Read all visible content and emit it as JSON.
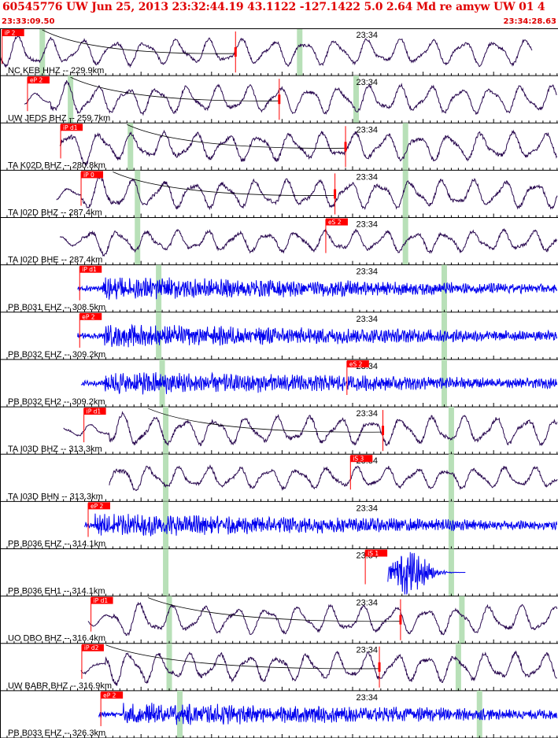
{
  "header": {
    "title": "60545776 UW Jun 25, 2013 23:32:44.19   43.1122 -127.1422  5.0 2.64 Md re amyw UW 01   4",
    "time_start": "23:33:09.50",
    "time_end": "23:34:28.63"
  },
  "colors": {
    "text_red": "#e00000",
    "pick_red": "#ff0000",
    "broadband_trace": "#2a0a50",
    "shortperiod_trace": "#0000ee",
    "marker_green": "#b8e0b8",
    "grid": "#000000"
  },
  "chart_data": {
    "type": "seismogram-stack",
    "time_axis": {
      "start": "23:33:09.50",
      "end": "23:34:28.63",
      "minute_label": "23:34",
      "minute_time_s": 50.5
    },
    "traces": [
      {
        "label": "NC KEB HHZ -- 229.9km",
        "color": "broadband",
        "kind": "bb",
        "start": 0.0,
        "end": 75.5,
        "amp": 0.8,
        "noise": 0.1,
        "period": 4.5,
        "onset": 0,
        "picks": [
          {
            "label": "iP 2",
            "t": 0.3,
            "flag": true
          },
          {
            "label": "",
            "t": 33.4,
            "flag": false
          }
        ],
        "green": [
          6.0,
          42.5
        ],
        "curve": {
          "from": 6.0,
          "to": 33.4
        }
      },
      {
        "label": "UW JEDS BHZ -- 259.7km",
        "color": "broadband",
        "kind": "bb",
        "start": 3.5,
        "end": 80.0,
        "amp": 0.85,
        "noise": 0.1,
        "period": 4.3,
        "onset": 7.2,
        "picks": [
          {
            "label": "eP 2",
            "t": 3.9,
            "flag": true
          },
          {
            "label": "",
            "t": 39.6,
            "flag": false
          }
        ],
        "green": [
          10.0,
          50.5
        ],
        "curve": {
          "from": 10.0,
          "to": 39.6
        }
      },
      {
        "label": "TA K02D BHZ -- 280.8km",
        "color": "broadband",
        "kind": "bb",
        "start": 8.5,
        "end": 83.0,
        "amp": 0.85,
        "noise": 0.12,
        "period": 4.5,
        "onset": 8.6,
        "picks": [
          {
            "label": "iP d1",
            "t": 8.6,
            "flag": true
          },
          {
            "label": "",
            "t": 49.0,
            "flag": false
          }
        ],
        "green": [
          18.5,
          57.5
        ],
        "curve": {
          "from": 18.0,
          "to": 49.0
        }
      },
      {
        "label": "TA I02D BHZ -- 287.4km",
        "color": "broadband",
        "kind": "bb",
        "start": 8.0,
        "end": 84.0,
        "amp": 0.85,
        "noise": 0.12,
        "period": 4.4,
        "onset": 11.5,
        "picks": [
          {
            "label": "iP 0",
            "t": 11.5,
            "flag": true
          },
          {
            "label": "",
            "t": 47.5,
            "flag": false
          }
        ],
        "green": [
          19.5,
          57.5
        ],
        "curve": {
          "from": 16.0,
          "to": 47.5
        }
      },
      {
        "label": "TA I02D BHE -- 287.4km",
        "color": "broadband",
        "kind": "bb",
        "start": 8.5,
        "end": 84.0,
        "amp": 0.65,
        "noise": 0.14,
        "period": 4.2,
        "onset": 11.5,
        "picks": [
          {
            "label": "eS 2",
            "t": 46.2,
            "flag": true
          }
        ],
        "green": [
          19.5,
          57.5
        ],
        "curve": null
      },
      {
        "label": "PB B031 EHZ -- 308.5km",
        "color": "shortperiod",
        "kind": "sp",
        "start": 11.0,
        "end": 87.5,
        "amp": 0.45,
        "noise": 0.35,
        "period": 1.0,
        "onset": 14.5,
        "picks": [
          {
            "label": "iP d1",
            "t": 11.3,
            "flag": true
          }
        ],
        "green": [
          22.5,
          63.0
        ],
        "curve": null
      },
      {
        "label": "PB B032 EHZ -- 309.2km",
        "color": "shortperiod",
        "kind": "sp",
        "start": 11.0,
        "end": 87.5,
        "amp": 0.45,
        "noise": 0.3,
        "period": 1.0,
        "onset": 14.8,
        "picks": [
          {
            "label": "eP 2",
            "t": 11.3,
            "flag": true
          }
        ],
        "green": [
          22.5,
          63.0
        ],
        "curve": null
      },
      {
        "label": "PB B032 EH2 -- 309.2km",
        "color": "shortperiod",
        "kind": "sp",
        "start": 11.5,
        "end": 87.5,
        "amp": 0.45,
        "noise": 0.3,
        "period": 1.0,
        "onset": 14.8,
        "picks": [
          {
            "label": "eS 2",
            "t": 49.2,
            "flag": true
          }
        ],
        "green": [
          23.0,
          63.0
        ],
        "curve": null
      },
      {
        "label": "TA I03D BHZ -- 313.3km",
        "color": "broadband",
        "kind": "bb",
        "start": 9.0,
        "end": 87.5,
        "amp": 0.85,
        "noise": 0.12,
        "period": 4.4,
        "onset": 15.5,
        "picks": [
          {
            "label": "iP d1",
            "t": 11.9,
            "flag": true
          },
          {
            "label": "",
            "t": 54.3,
            "flag": false
          }
        ],
        "green": [
          23.5,
          64.0
        ],
        "curve": {
          "from": 21.0,
          "to": 54.3
        }
      },
      {
        "label": "TA I03D BHN -- 313.3km",
        "color": "broadband",
        "kind": "bb",
        "start": 15.5,
        "end": 87.5,
        "amp": 0.65,
        "noise": 0.14,
        "period": 4.2,
        "onset": 15.5,
        "picks": [
          {
            "label": "iS 3",
            "t": 49.7,
            "flag": true
          }
        ],
        "green": [
          23.5,
          64.0
        ],
        "curve": null
      },
      {
        "label": "PB B036 EHZ -- 314.1km",
        "color": "shortperiod",
        "kind": "sp",
        "start": 12.0,
        "end": 88.0,
        "amp": 0.45,
        "noise": 0.3,
        "period": 1.0,
        "onset": 13.5,
        "picks": [
          {
            "label": "eP 2",
            "t": 12.5,
            "flag": true
          }
        ],
        "green": [
          23.5,
          64.0
        ],
        "curve": null
      },
      {
        "label": "PB B036 EH1 -- 314.1km",
        "color": "shortperiod",
        "kind": "sp",
        "start": 55.0,
        "end": 66.0,
        "amp": 0.9,
        "noise": 0.1,
        "period": 0.9,
        "onset": 55.0,
        "picks": [
          {
            "label": "iS 1",
            "t": 51.8,
            "flag": true
          }
        ],
        "green": [
          23.5,
          64.0
        ],
        "curve": null
      },
      {
        "label": "UO DBO BHZ -- 316.4km",
        "color": "broadband",
        "kind": "bb",
        "start": 12.5,
        "end": 88.5,
        "amp": 0.85,
        "noise": 0.1,
        "period": 4.5,
        "onset": 16.0,
        "picks": [
          {
            "label": "iP d1",
            "t": 12.9,
            "flag": true
          },
          {
            "label": "",
            "t": 56.8,
            "flag": false
          }
        ],
        "green": [
          24.0,
          65.5
        ],
        "curve": {
          "from": 21.0,
          "to": 56.8
        }
      },
      {
        "label": "UW BABR BHZ -- 316.9km",
        "color": "broadband",
        "kind": "bb",
        "start": 11.5,
        "end": 88.0,
        "amp": 0.85,
        "noise": 0.12,
        "period": 4.2,
        "onset": 15.0,
        "picks": [
          {
            "label": "iP d2",
            "t": 11.6,
            "flag": true
          },
          {
            "label": "",
            "t": 53.8,
            "flag": false
          }
        ],
        "green": [
          24.0,
          65.0
        ],
        "curve": {
          "from": 15.0,
          "to": 53.8
        }
      },
      {
        "label": "PB B033 EHZ -- 326.3km",
        "color": "shortperiod",
        "kind": "sp",
        "start": 14.0,
        "end": 88.0,
        "amp": 0.45,
        "noise": 0.25,
        "period": 1.0,
        "onset": 17.5,
        "picks": [
          {
            "label": "eP 2",
            "t": 14.3,
            "flag": true
          }
        ],
        "green": [
          25.5,
          68.0
        ],
        "curve": null
      }
    ]
  }
}
